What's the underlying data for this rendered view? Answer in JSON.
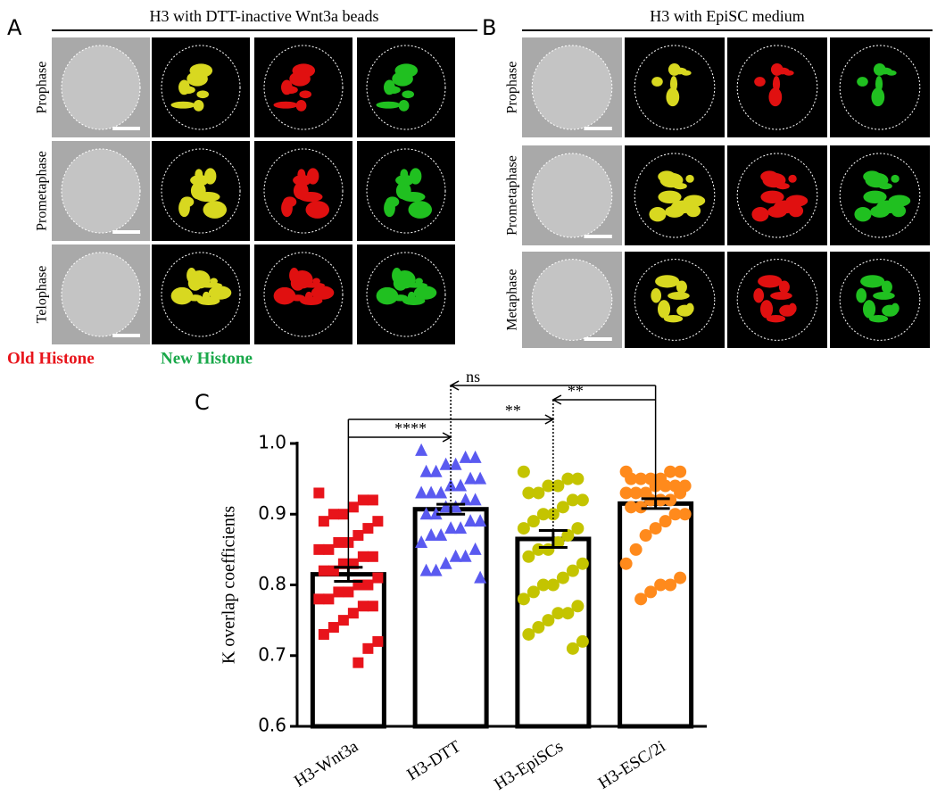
{
  "panels": [
    {
      "label": "A",
      "title": "H3 with DTT-inactive Wnt3a beads",
      "rows": [
        "Prophase",
        "Prometaphase",
        "Telophase"
      ]
    },
    {
      "label": "B",
      "title": "H3 with EpiSC medium",
      "rows": [
        "Prophase",
        "Prometaphase",
        "Metaphase"
      ]
    }
  ],
  "legend": {
    "old": "Old Histone",
    "new": "New Histone"
  },
  "chart_label": "C",
  "chart_data": {
    "type": "bar",
    "ylabel": "K overlap coefficients",
    "categories": [
      "H3-Wnt3a",
      "H3-DTT",
      "H3-EpiSCs",
      "H3-ESC/2i"
    ],
    "values": [
      0.815,
      0.907,
      0.865,
      0.915
    ],
    "errors": [
      0.01,
      0.007,
      0.012,
      0.007
    ],
    "colors": [
      "#e8141b",
      "#5a5af0",
      "#c4c400",
      "#ff8a1c"
    ],
    "markers": [
      "square",
      "triangle",
      "circle",
      "circle"
    ],
    "points": [
      [
        0.93,
        0.92,
        0.92,
        0.91,
        0.9,
        0.9,
        0.89,
        0.89,
        0.88,
        0.87,
        0.86,
        0.86,
        0.85,
        0.85,
        0.84,
        0.84,
        0.83,
        0.83,
        0.82,
        0.82,
        0.81,
        0.8,
        0.8,
        0.79,
        0.79,
        0.78,
        0.78,
        0.77,
        0.77,
        0.76,
        0.75,
        0.74,
        0.73,
        0.72,
        0.71,
        0.69
      ],
      [
        0.99,
        0.98,
        0.98,
        0.97,
        0.97,
        0.96,
        0.96,
        0.95,
        0.95,
        0.94,
        0.94,
        0.93,
        0.93,
        0.93,
        0.92,
        0.92,
        0.91,
        0.91,
        0.9,
        0.9,
        0.89,
        0.89,
        0.88,
        0.88,
        0.87,
        0.87,
        0.86,
        0.85,
        0.84,
        0.84,
        0.83,
        0.82,
        0.82,
        0.81
      ],
      [
        0.96,
        0.95,
        0.95,
        0.94,
        0.94,
        0.93,
        0.93,
        0.92,
        0.92,
        0.91,
        0.9,
        0.9,
        0.89,
        0.88,
        0.88,
        0.87,
        0.86,
        0.85,
        0.85,
        0.84,
        0.83,
        0.82,
        0.81,
        0.8,
        0.8,
        0.79,
        0.78,
        0.77,
        0.76,
        0.76,
        0.75,
        0.74,
        0.73,
        0.72,
        0.71
      ],
      [
        0.96,
        0.96,
        0.96,
        0.95,
        0.95,
        0.95,
        0.95,
        0.94,
        0.94,
        0.94,
        0.94,
        0.93,
        0.93,
        0.93,
        0.93,
        0.92,
        0.92,
        0.92,
        0.91,
        0.91,
        0.9,
        0.9,
        0.89,
        0.88,
        0.87,
        0.85,
        0.83,
        0.81,
        0.8,
        0.8,
        0.79,
        0.78
      ]
    ],
    "annotations": [
      "****",
      "**",
      "ns",
      "**"
    ],
    "ylim": [
      0.6,
      1.0
    ],
    "yticks": [
      0.6,
      0.7,
      0.8,
      0.9,
      {
        "value": 1.0,
        "label": "1.0"
      }
    ]
  }
}
